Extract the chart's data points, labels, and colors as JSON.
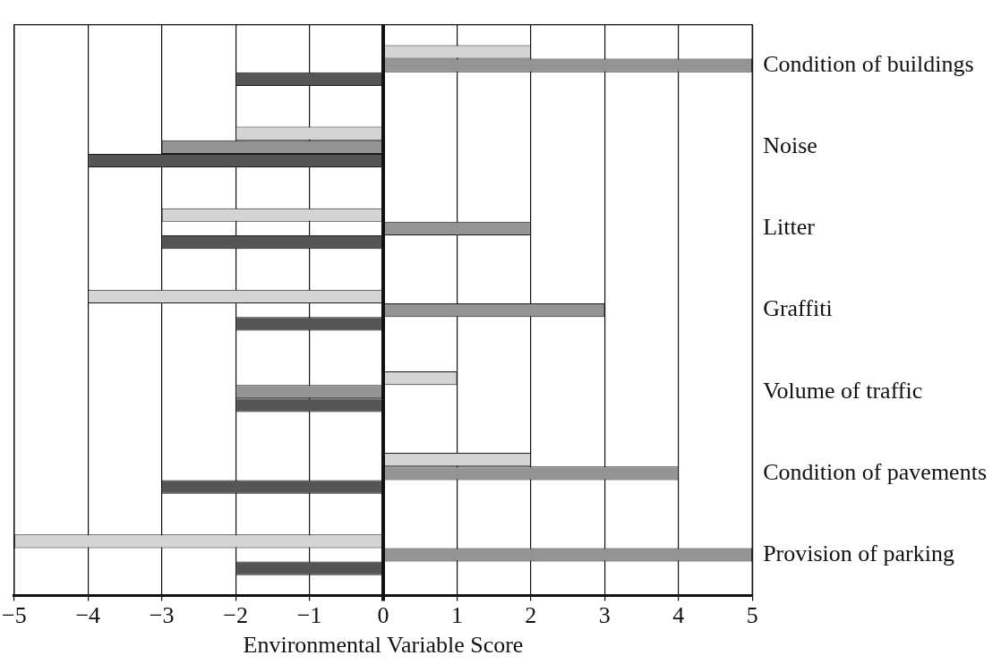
{
  "chart_data": {
    "type": "bar",
    "orientation": "horizontal",
    "xlabel": "Environmental Variable Score",
    "categories": [
      "Condition of buildings",
      "Noise",
      "Litter",
      "Graffiti",
      "Volume of traffic",
      "Condition of pavements",
      "Provision of parking"
    ],
    "series": [
      {
        "color": "#d4d4d4",
        "values": [
          2,
          -2,
          -3,
          -4,
          1,
          2,
          -5
        ]
      },
      {
        "color": "#949494",
        "values": [
          5,
          -3,
          2,
          3,
          -2,
          4,
          5
        ]
      },
      {
        "color": "#555555",
        "values": [
          -2,
          -4,
          -3,
          -2,
          -2,
          -3,
          -2
        ]
      }
    ],
    "xlim": [
      -5,
      5
    ],
    "xticks": [
      {
        "value": -5,
        "label": "−5"
      },
      {
        "value": -4,
        "label": "−4"
      },
      {
        "value": -3,
        "label": "−3"
      },
      {
        "value": -2,
        "label": "−2"
      },
      {
        "value": -1,
        "label": "−1"
      },
      0,
      1,
      2,
      3,
      4,
      5
    ],
    "grid": "x",
    "legend": false
  }
}
